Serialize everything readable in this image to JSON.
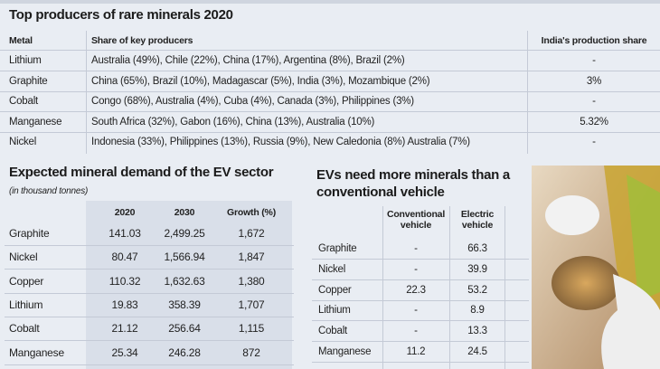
{
  "producers": {
    "title": "Top producers of rare minerals 2020",
    "headers": [
      "Metal",
      "Share of key producers",
      "India's production share"
    ],
    "rows": [
      [
        "Lithium",
        "Australia (49%), Chile (22%), China (17%), Argentina (8%), Brazil (2%)",
        "-"
      ],
      [
        "Graphite",
        "China (65%), Brazil (10%), Madagascar (5%), India (3%), Mozambique (2%)",
        "3%"
      ],
      [
        "Cobalt",
        "Congo (68%), Australia (4%), Cuba (4%), Canada (3%), Philippines (3%)",
        "-"
      ],
      [
        "Manganese",
        "South Africa (32%), Gabon (16%), China (13%), Australia (10%)",
        "5.32%"
      ],
      [
        "Nickel",
        "Indonesia (33%), Philippines (13%), Russia (9%), New Caledonia (8%) Australia (7%)",
        "-"
      ]
    ]
  },
  "demand": {
    "title": "Expected mineral demand of the EV sector",
    "subtitle": "(in thousand tonnes)",
    "headers": [
      "2020",
      "2030",
      "Growth (%)"
    ],
    "rows": [
      [
        "Graphite",
        "141.03",
        "2,499.25",
        "1,672"
      ],
      [
        "Nickel",
        "80.47",
        "1,566.94",
        "1,847"
      ],
      [
        "Copper",
        "110.32",
        "1,632.63",
        "1,380"
      ],
      [
        "Lithium",
        "19.83",
        "358.39",
        "1,707"
      ],
      [
        "Cobalt",
        "21.12",
        "256.64",
        "1,115"
      ],
      [
        "Manganese",
        "25.34",
        "246.28",
        "872"
      ]
    ]
  },
  "evs": {
    "title": "EVs need more minerals than a conventional vehicle",
    "headers": [
      "Conventional vehicle",
      "Electric vehicle"
    ],
    "rows": [
      [
        "Graphite",
        "-",
        "66.3"
      ],
      [
        "Nickel",
        "-",
        "39.9"
      ],
      [
        "Copper",
        "22.3",
        "53.2"
      ],
      [
        "Lithium",
        "-",
        "8.9"
      ],
      [
        "Cobalt",
        "-",
        "13.3"
      ],
      [
        "Manganese",
        "11.2",
        "24.5"
      ]
    ]
  }
}
